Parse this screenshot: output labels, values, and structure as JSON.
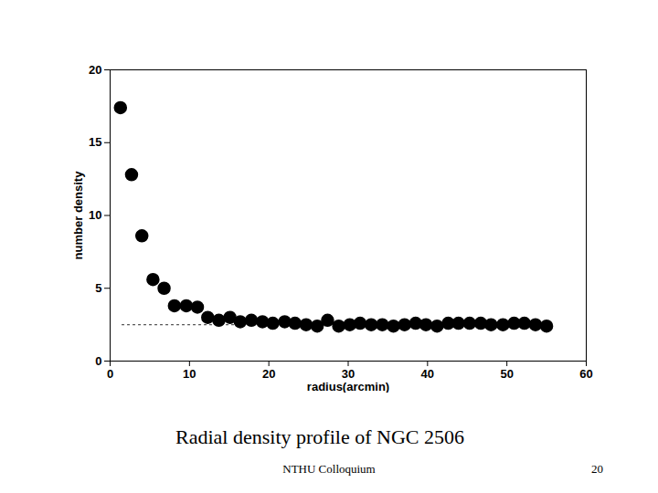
{
  "chart_data": {
    "type": "scatter",
    "title": "Radial density profile of NGC 2506",
    "xlabel": "radius(arcmin)",
    "ylabel": "number density",
    "x": [
      1.3,
      2.7,
      4.0,
      5.4,
      6.8,
      8.1,
      9.6,
      11.0,
      12.3,
      13.7,
      15.1,
      16.4,
      17.8,
      19.2,
      20.5,
      22.0,
      23.3,
      24.7,
      26.1,
      27.4,
      28.8,
      30.2,
      31.5,
      32.9,
      34.3,
      35.7,
      37.1,
      38.5,
      39.8,
      41.2,
      42.6,
      43.9,
      45.3,
      46.7,
      48.0,
      49.5,
      50.9,
      52.2,
      53.6,
      55.0
    ],
    "values": [
      17.4,
      12.8,
      8.6,
      5.6,
      5.0,
      3.8,
      3.8,
      3.7,
      3.0,
      2.8,
      3.0,
      2.7,
      2.8,
      2.7,
      2.6,
      2.7,
      2.6,
      2.5,
      2.4,
      2.8,
      2.4,
      2.5,
      2.6,
      2.5,
      2.5,
      2.4,
      2.5,
      2.6,
      2.5,
      2.4,
      2.6,
      2.6,
      2.6,
      2.6,
      2.5,
      2.5,
      2.6,
      2.6,
      2.5,
      2.4
    ],
    "color": "#000000",
    "marker": "circle",
    "reference_line": {
      "x": [
        1.5,
        20
      ],
      "values": [
        2.5,
        2.5
      ],
      "line_style": "dotted",
      "color": "#555555"
    },
    "xlim": [
      0,
      60
    ],
    "ylim": [
      0,
      20
    ],
    "xticks": [
      0,
      10,
      20,
      30,
      40,
      50,
      60
    ],
    "yticks": [
      0,
      5,
      10,
      15,
      20
    ],
    "grid": false
  },
  "slide": {
    "footer": "NTHU Colloquium",
    "page": 20
  }
}
